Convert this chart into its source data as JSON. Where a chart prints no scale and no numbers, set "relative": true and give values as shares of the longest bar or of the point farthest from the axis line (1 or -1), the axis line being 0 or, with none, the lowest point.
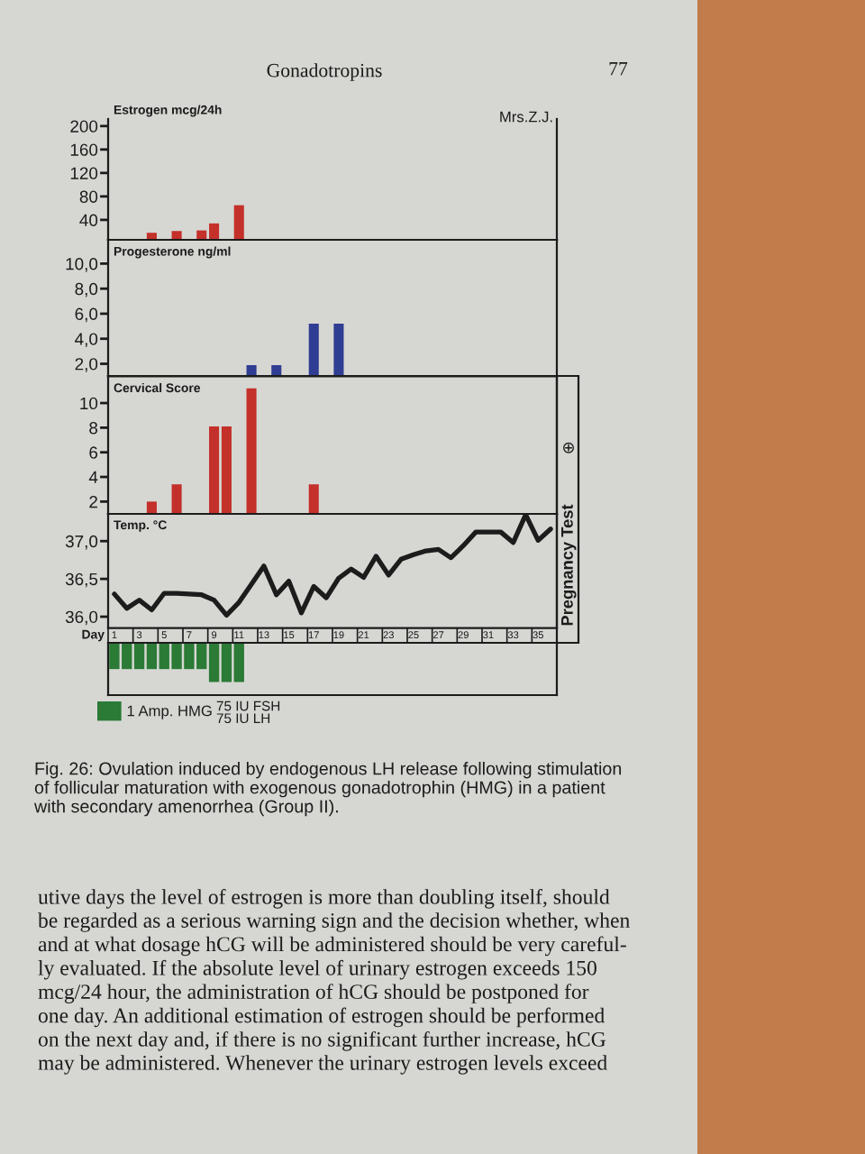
{
  "chart_data": [
    {
      "type": "bar",
      "ylabel": "Estrogen mcg/24h",
      "x": [
        4,
        6,
        8,
        9,
        11
      ],
      "values": [
        18,
        21,
        22,
        34,
        65
      ],
      "color": "#c4302a",
      "xlim": [
        0.5,
        36.5
      ],
      "ylim": [
        6,
        212
      ],
      "yticks": [
        40,
        80,
        120,
        160,
        200
      ],
      "tick_labels": "y",
      "annotations": [
        "Gonadotropins",
        "77",
        "Mrs.Z.J."
      ]
    },
    {
      "type": "bar",
      "ylabel": "Progesterone ng/ml",
      "x": [
        12,
        14,
        17,
        19
      ],
      "values": [
        1.9,
        1.9,
        5.2,
        5.2
      ],
      "color": "#2f3d92",
      "xlim": [
        0.5,
        36.5
      ],
      "ylim": [
        1,
        11.9
      ],
      "yticks": [
        {
          "value": 2,
          "label": "2,0"
        },
        {
          "value": 4,
          "label": "4,0"
        },
        {
          "value": 6,
          "label": "6,0"
        },
        {
          "value": 8,
          "label": "8,0"
        },
        {
          "value": 10,
          "label": "10,0"
        }
      ],
      "tick_labels": "y"
    },
    {
      "type": "bar",
      "ylabel": "Cervical Score",
      "x": [
        4,
        6,
        9,
        10,
        12,
        17
      ],
      "values": [
        2,
        3.4,
        8.1,
        8.1,
        11.2,
        3.4
      ],
      "color": "#c4302a",
      "xlim": [
        0.5,
        36.5
      ],
      "ylim": [
        1,
        12.2
      ],
      "yticks": [
        2,
        4,
        6,
        8,
        10
      ],
      "tick_labels": "y",
      "annotations": [
        "⊕",
        "Pregnancy Test"
      ]
    },
    {
      "type": "line",
      "ylabel": "Temp. °C",
      "xlabel": "Day",
      "x": [
        1,
        2,
        3,
        4,
        5,
        6,
        7,
        8,
        9,
        10,
        11,
        12,
        13,
        14,
        15,
        16,
        17,
        18,
        19,
        20,
        21,
        22,
        23,
        24,
        25,
        26,
        27,
        28,
        29,
        30,
        31,
        32,
        33,
        34,
        35,
        36
      ],
      "values": [
        36.3,
        36.11,
        36.22,
        36.09,
        36.31,
        36.31,
        36.3,
        36.29,
        36.22,
        36.02,
        36.19,
        36.43,
        36.67,
        36.29,
        36.47,
        36.05,
        36.4,
        36.25,
        36.51,
        36.63,
        36.52,
        36.8,
        36.55,
        36.76,
        36.82,
        36.87,
        36.89,
        36.78,
        36.94,
        37.12,
        37.12,
        37.12,
        36.98,
        37.35,
        37.01,
        37.16
      ],
      "color": "#1c1c1c",
      "xlim": [
        0.5,
        36.5
      ],
      "ylim": [
        35.85,
        37.36
      ],
      "xticks": [
        1,
        3,
        5,
        7,
        9,
        11,
        13,
        15,
        17,
        19,
        21,
        23,
        25,
        27,
        29,
        31,
        33,
        35
      ],
      "yticks": [
        {
          "value": 36,
          "label": "36,0"
        },
        {
          "value": 36.5,
          "label": "36,5"
        },
        {
          "value": 37,
          "label": "37,0"
        }
      ]
    },
    {
      "type": "bar",
      "relative": true,
      "x": [
        1,
        2,
        3,
        4,
        5,
        6,
        7,
        8,
        9,
        10,
        11
      ],
      "series": [
        {
          "name": "1 Amp. HMG",
          "color": "#2b7a36",
          "values": [
            -0.67,
            -0.67,
            -0.67,
            -0.67,
            -0.67,
            -0.67,
            -0.67,
            -0.67,
            -1,
            -1,
            -1
          ]
        }
      ],
      "xlim": [
        0.5,
        36.5
      ],
      "tick_labels": false,
      "legend": "bottom left",
      "annotations": [
        "75 IU FSH\n75 IU LH",
        "Fig. 26: Ovulation induced by endogenous LH release following stimulation\nof follicular maturation with exogenous gonadotrophin (HMG) in a patient\nwith secondary amenorrhea (Group II).",
        "utive days the level of estrogen is more than doubling itself, should\nbe regarded as a serious warning sign and the decision whether, when\nand at what dosage hCG will be administered should be very careful-\nly evaluated. If the absolute level of urinary estrogen exceeds 150\nmcg/24 hour, the administration of hCG should be postponed for\none day. An additional estimation of estrogen should be performed\non the next day and, if there is no significant further increase, hCG\nmay be administered. Whenever the urinary estrogen levels exceed"
      ]
    }
  ]
}
